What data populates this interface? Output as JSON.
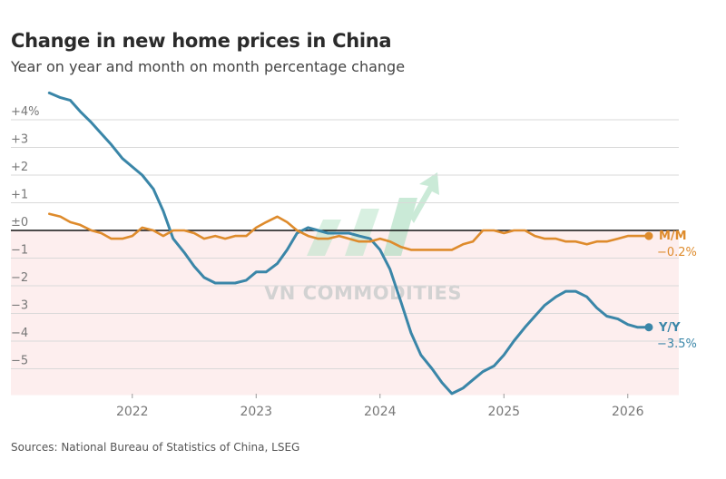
{
  "chart_data": {
    "type": "line",
    "title": "Change in new home prices in China",
    "subtitle": "Year on year and month on month percentage change",
    "source": "Sources: National Bureau of Statistics of China, LSEG",
    "watermark": "VN COMMODITIES",
    "y_ticks": [
      "+4%",
      "+3",
      "+2",
      "+1",
      "±0",
      "−1",
      "−2",
      "−3",
      "−4",
      "−5"
    ],
    "y_tick_values": [
      4,
      3,
      2,
      1,
      0,
      -1,
      -2,
      -3,
      -4,
      -5
    ],
    "ylim": [
      -5.95,
      4.6
    ],
    "x_ticks": [
      "2022",
      "2023",
      "2024",
      "2025",
      "2026"
    ],
    "x_tick_values": [
      2022,
      2023,
      2024,
      2025,
      2026
    ],
    "xlim": [
      2021.02,
      2026.47
    ],
    "grid": true,
    "negative_region_color": "#fdeeee",
    "series": [
      {
        "name": "Y/Y",
        "color": "#3a86a8",
        "end_label": "Y/Y",
        "end_value_label": "−3.5%",
        "points": [
          [
            2021.33,
            4.97
          ],
          [
            2021.42,
            4.8
          ],
          [
            2021.5,
            4.7
          ],
          [
            2021.58,
            4.3
          ],
          [
            2021.67,
            3.9
          ],
          [
            2021.75,
            3.5
          ],
          [
            2021.83,
            3.1
          ],
          [
            2021.92,
            2.6
          ],
          [
            2022.0,
            2.3
          ],
          [
            2022.08,
            2.0
          ],
          [
            2022.17,
            1.5
          ],
          [
            2022.25,
            0.7
          ],
          [
            2022.33,
            -0.3
          ],
          [
            2022.42,
            -0.8
          ],
          [
            2022.5,
            -1.3
          ],
          [
            2022.58,
            -1.7
          ],
          [
            2022.67,
            -1.9
          ],
          [
            2022.75,
            -1.9
          ],
          [
            2022.83,
            -1.9
          ],
          [
            2022.92,
            -1.8
          ],
          [
            2023.0,
            -1.5
          ],
          [
            2023.08,
            -1.5
          ],
          [
            2023.17,
            -1.2
          ],
          [
            2023.25,
            -0.7
          ],
          [
            2023.33,
            -0.1
          ],
          [
            2023.42,
            0.1
          ],
          [
            2023.5,
            0.0
          ],
          [
            2023.58,
            -0.1
          ],
          [
            2023.67,
            -0.1
          ],
          [
            2023.75,
            -0.1
          ],
          [
            2023.83,
            -0.2
          ],
          [
            2023.92,
            -0.3
          ],
          [
            2024.0,
            -0.7
          ],
          [
            2024.08,
            -1.4
          ],
          [
            2024.17,
            -2.6
          ],
          [
            2024.25,
            -3.7
          ],
          [
            2024.33,
            -4.5
          ],
          [
            2024.42,
            -5.0
          ],
          [
            2024.5,
            -5.5
          ],
          [
            2024.58,
            -5.9
          ],
          [
            2024.67,
            -5.7
          ],
          [
            2024.75,
            -5.4
          ],
          [
            2024.83,
            -5.1
          ],
          [
            2024.92,
            -4.9
          ],
          [
            2025.0,
            -4.5
          ],
          [
            2025.08,
            -4.0
          ],
          [
            2025.17,
            -3.5
          ],
          [
            2025.25,
            -3.1
          ],
          [
            2025.33,
            -2.7
          ],
          [
            2025.42,
            -2.4
          ],
          [
            2025.5,
            -2.2
          ],
          [
            2025.58,
            -2.2
          ],
          [
            2025.67,
            -2.4
          ],
          [
            2025.75,
            -2.8
          ],
          [
            2025.83,
            -3.1
          ],
          [
            2025.92,
            -3.2
          ],
          [
            2026.0,
            -3.4
          ],
          [
            2026.08,
            -3.5
          ],
          [
            2026.17,
            -3.5
          ]
        ]
      },
      {
        "name": "M/M",
        "color": "#de8b2c",
        "end_label": "M/M",
        "end_value_label": "−0.2%",
        "points": [
          [
            2021.33,
            0.6
          ],
          [
            2021.42,
            0.5
          ],
          [
            2021.5,
            0.3
          ],
          [
            2021.58,
            0.2
          ],
          [
            2021.67,
            0.0
          ],
          [
            2021.75,
            -0.1
          ],
          [
            2021.83,
            -0.3
          ],
          [
            2021.92,
            -0.3
          ],
          [
            2022.0,
            -0.2
          ],
          [
            2022.08,
            0.1
          ],
          [
            2022.17,
            0.0
          ],
          [
            2022.25,
            -0.2
          ],
          [
            2022.33,
            0.0
          ],
          [
            2022.42,
            0.0
          ],
          [
            2022.5,
            -0.1
          ],
          [
            2022.58,
            -0.3
          ],
          [
            2022.67,
            -0.2
          ],
          [
            2022.75,
            -0.3
          ],
          [
            2022.83,
            -0.2
          ],
          [
            2022.92,
            -0.2
          ],
          [
            2023.0,
            0.1
          ],
          [
            2023.08,
            0.3
          ],
          [
            2023.17,
            0.5
          ],
          [
            2023.25,
            0.3
          ],
          [
            2023.33,
            0.0
          ],
          [
            2023.42,
            -0.2
          ],
          [
            2023.5,
            -0.3
          ],
          [
            2023.58,
            -0.3
          ],
          [
            2023.67,
            -0.2
          ],
          [
            2023.75,
            -0.3
          ],
          [
            2023.83,
            -0.4
          ],
          [
            2023.92,
            -0.4
          ],
          [
            2024.0,
            -0.3
          ],
          [
            2024.08,
            -0.4
          ],
          [
            2024.17,
            -0.6
          ],
          [
            2024.25,
            -0.7
          ],
          [
            2024.33,
            -0.7
          ],
          [
            2024.42,
            -0.7
          ],
          [
            2024.5,
            -0.7
          ],
          [
            2024.58,
            -0.7
          ],
          [
            2024.67,
            -0.5
          ],
          [
            2024.75,
            -0.4
          ],
          [
            2024.83,
            0.0
          ],
          [
            2024.92,
            0.0
          ],
          [
            2025.0,
            -0.1
          ],
          [
            2025.08,
            0.0
          ],
          [
            2025.17,
            0.0
          ],
          [
            2025.25,
            -0.2
          ],
          [
            2025.33,
            -0.3
          ],
          [
            2025.42,
            -0.3
          ],
          [
            2025.5,
            -0.4
          ],
          [
            2025.58,
            -0.4
          ],
          [
            2025.67,
            -0.5
          ],
          [
            2025.75,
            -0.4
          ],
          [
            2025.83,
            -0.4
          ],
          [
            2025.92,
            -0.3
          ],
          [
            2026.0,
            -0.2
          ],
          [
            2026.08,
            -0.2
          ],
          [
            2026.17,
            -0.2
          ]
        ]
      }
    ]
  }
}
